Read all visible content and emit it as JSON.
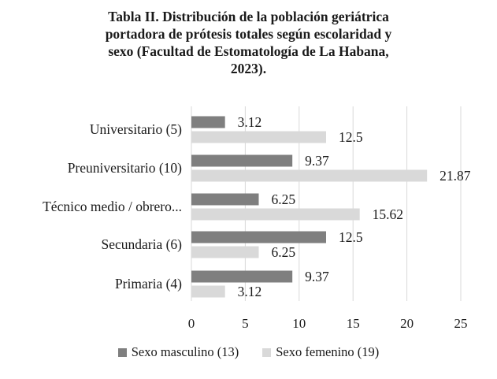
{
  "chart_data": {
    "type": "bar",
    "orientation": "horizontal",
    "title_lines": [
      "Tabla II. Distribución de la población geriátrica",
      "portadora de prótesis totales según escolaridad y",
      "sexo (Facultad de Estomatología de La Habana,",
      "2023)."
    ],
    "categories": [
      "Universitario (5)",
      "Preuniversitario (10)",
      "Técnico medio / obrero...",
      "Secundaria (6)",
      "Primaria (4)"
    ],
    "series": [
      {
        "name": "Sexo masculino (13)",
        "color": "#7f7f7f",
        "values": [
          3.12,
          9.37,
          6.25,
          12.5,
          9.37
        ],
        "labels": [
          "3.12",
          "9.37",
          "6.25",
          "12.5",
          "9.37"
        ]
      },
      {
        "name": "Sexo femenino (19)",
        "color": "#d9d9d9",
        "values": [
          12.5,
          21.87,
          15.62,
          6.25,
          3.12
        ],
        "labels": [
          "12.5",
          "21.87",
          "15.62",
          "6.25",
          "3.12"
        ]
      }
    ],
    "xlim": [
      0,
      25
    ],
    "xticks": [
      0,
      5,
      10,
      15,
      20,
      25
    ],
    "xtick_labels": [
      "0",
      "5",
      "10",
      "15",
      "20",
      "25"
    ],
    "grid": "vertical",
    "gridline_color": "#d9d9d9",
    "legend_position": "bottom",
    "xlabel": "",
    "ylabel": ""
  }
}
